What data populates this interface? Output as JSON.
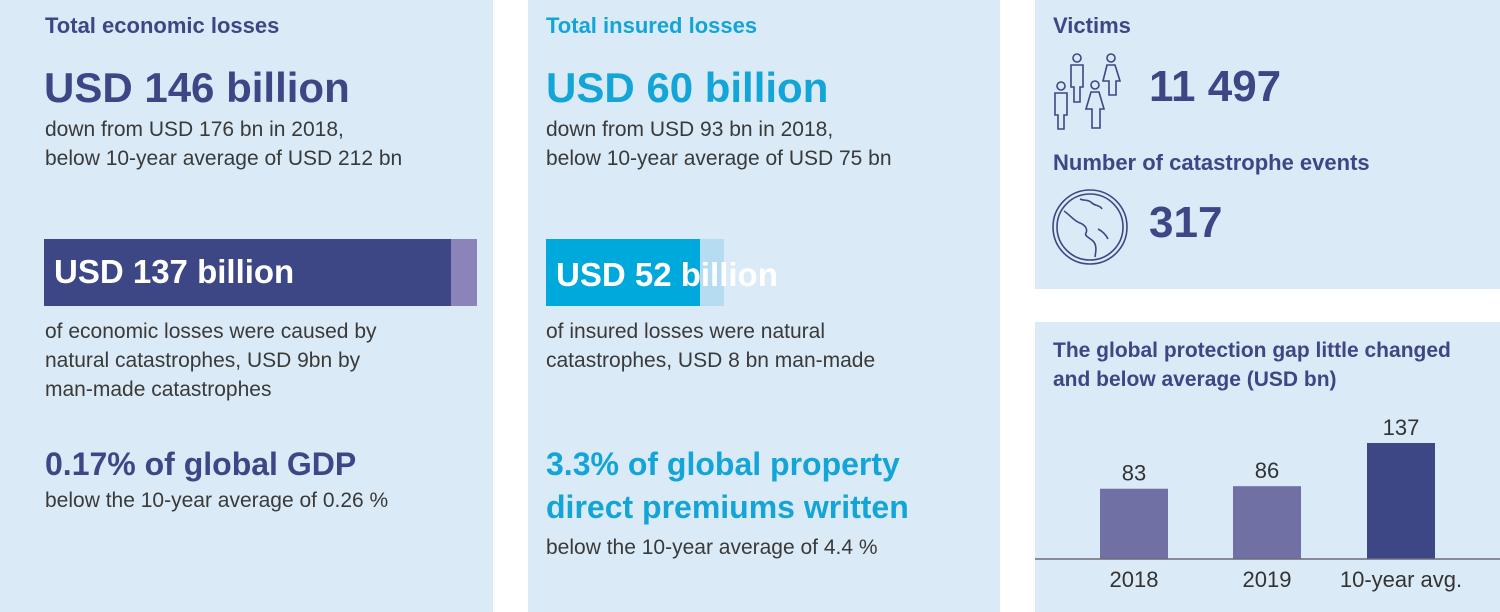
{
  "colors": {
    "navy": "#3d4785",
    "cyan": "#14a5d8",
    "panel": "#daeaf6",
    "purple_light": "#8a84b8",
    "cyan_light": "#b5dcf0",
    "bar_2018_2019": "#7170a4",
    "bar_avg": "#3d4785"
  },
  "economic": {
    "heading": "Total economic losses",
    "amount": "USD 146 billion",
    "desc1": "down from USD 176 bn in 2018,",
    "desc2": "below 10-year average of USD 212 bn",
    "bar_label": "USD 137 billion",
    "bar_natural_bn": 137,
    "bar_manmade_bn": 9,
    "bar_desc": [
      "of economic losses were caused by",
      "natural catastrophes, USD 9bn by",
      "man-made catastrophes"
    ],
    "gdp": "0.17% of global GDP",
    "gdp_desc": "below the 10-year average of 0.26 %"
  },
  "insured": {
    "heading": "Total insured losses",
    "amount": "USD 60 billion",
    "desc1": "down from USD 93 bn in 2018,",
    "desc2": "below 10-year average of USD 75 bn",
    "bar_label": "USD 52 billion",
    "bar_natural_bn": 52,
    "bar_manmade_bn": 8,
    "bar_desc": [
      "of insured losses were natural",
      "catastrophes, USD 8 bn man-made"
    ],
    "premium": [
      "3.3% of global property",
      "direct premiums written"
    ],
    "premium_desc": "below the 10-year average of 4.4 %"
  },
  "victims": {
    "heading": "Victims",
    "value": "11 497",
    "icon": "people-icon"
  },
  "events": {
    "heading": "Number of catastrophe events",
    "value": "317",
    "icon": "globe-icon"
  },
  "chart_data": {
    "type": "bar",
    "title": "The global protection gap little changed and below average (USD bn)",
    "categories": [
      "2018",
      "2019",
      "10-year avg."
    ],
    "values": [
      83,
      86,
      137
    ],
    "data_labels": [
      "83",
      "86",
      "137"
    ],
    "ylim": [
      0,
      137
    ],
    "grid": false
  }
}
